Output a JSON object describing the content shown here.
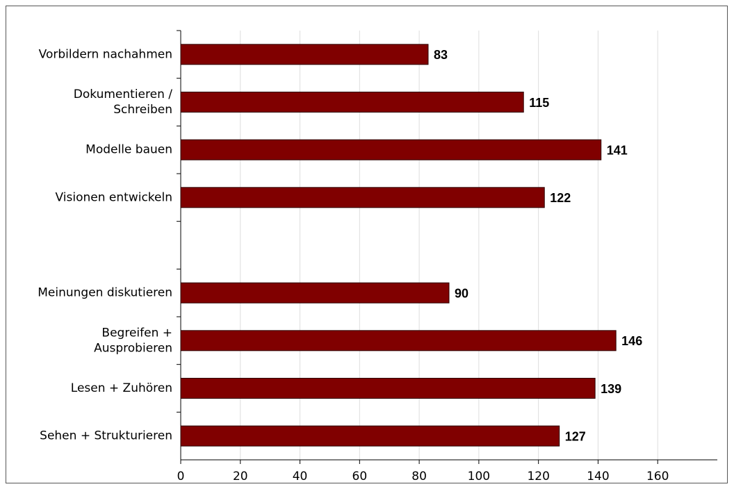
{
  "chart_data": {
    "type": "barh",
    "categories": [
      "Vorbildern nachahmen",
      "Dokumentieren /\nSchreiben",
      "Modelle bauen",
      "Visionen entwickeln",
      null,
      "Meinungen diskutieren",
      "Begreifen +\nAusprobieren",
      "Lesen + Zuhören",
      "Sehen + Strukturieren"
    ],
    "values": [
      83,
      115,
      141,
      122,
      null,
      90,
      146,
      139,
      127
    ],
    "color": "#800000",
    "label_color": "#1a1a8c",
    "xlim": [
      0,
      180
    ],
    "xticks": [
      0,
      20,
      40,
      60,
      80,
      100,
      120,
      140,
      160
    ],
    "grid": true
  }
}
